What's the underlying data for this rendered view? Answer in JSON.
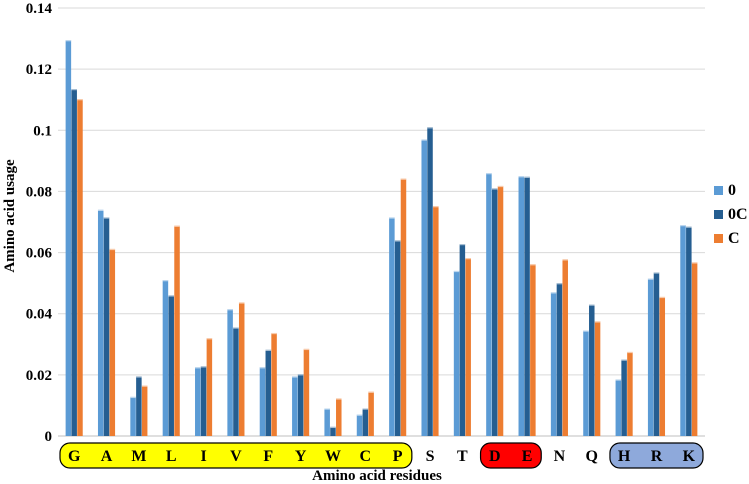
{
  "chart_data": {
    "type": "bar",
    "xlabel": "Amino acid residues",
    "ylabel": "Amino acid usage",
    "ylim": [
      0,
      0.14
    ],
    "yticks": [
      "0",
      "0.02",
      "0.04",
      "0.06",
      "0.08",
      "0.1",
      "0.12",
      "0.14"
    ],
    "grid": true,
    "legend_position": "right",
    "categories": [
      "G",
      "A",
      "M",
      "L",
      "I",
      "V",
      "F",
      "Y",
      "W",
      "C",
      "P",
      "S",
      "T",
      "D",
      "E",
      "N",
      "Q",
      "H",
      "R",
      "K"
    ],
    "series": [
      {
        "name": "0",
        "color": "#5B9BD5",
        "values": [
          0.1295,
          0.074,
          0.0128,
          0.051,
          0.0225,
          0.0415,
          0.0225,
          0.0195,
          0.009,
          0.007,
          0.0715,
          0.097,
          0.054,
          0.086,
          0.085,
          0.047,
          0.0345,
          0.0185,
          0.0515,
          0.069
        ]
      },
      {
        "name": "0C",
        "color": "#255E91",
        "values": [
          0.1135,
          0.0715,
          0.0195,
          0.046,
          0.0228,
          0.0355,
          0.0282,
          0.0202,
          0.003,
          0.009,
          0.064,
          0.101,
          0.0628,
          0.081,
          0.0848,
          0.05,
          0.043,
          0.025,
          0.0535,
          0.0685
        ]
      },
      {
        "name": "C",
        "color": "#ED7D31",
        "values": [
          0.1102,
          0.0612,
          0.0165,
          0.0688,
          0.032,
          0.0437,
          0.0337,
          0.0285,
          0.0123,
          0.0145,
          0.0842,
          0.0752,
          0.0582,
          0.0818,
          0.0562,
          0.0578,
          0.0375,
          0.0275,
          0.0455,
          0.0568
        ]
      }
    ],
    "category_groups": [
      {
        "labels": [
          "G",
          "A",
          "M",
          "L",
          "I",
          "V",
          "F",
          "Y",
          "W",
          "C",
          "P"
        ],
        "fill": "#FFFF00",
        "text_color": "#000000"
      },
      {
        "labels": [
          "D",
          "E"
        ],
        "fill": "#FF0000",
        "text_color": "#8B0000"
      },
      {
        "labels": [
          "H",
          "R",
          "K"
        ],
        "fill": "#8EA9DB",
        "text_color": "#000000"
      }
    ]
  }
}
